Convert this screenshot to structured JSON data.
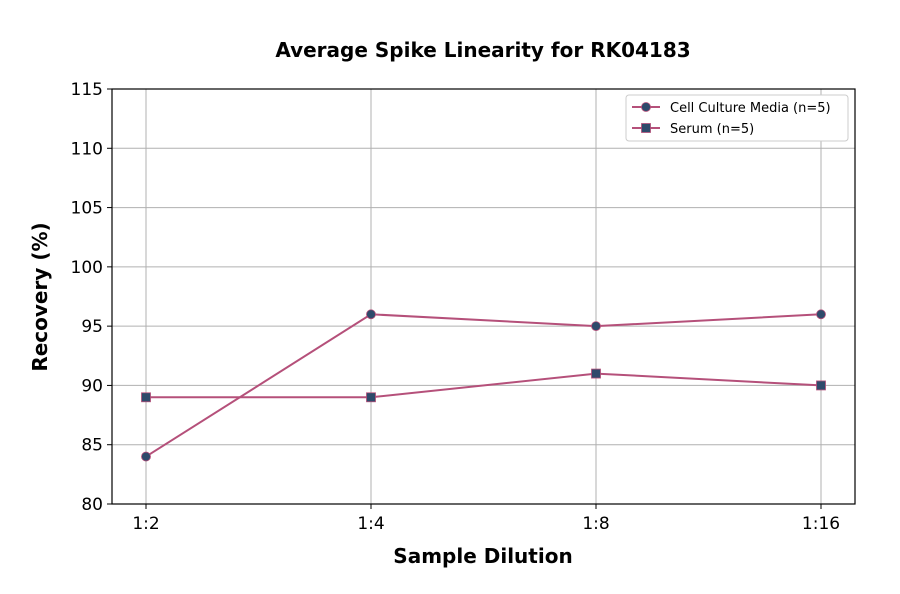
{
  "chart_data": {
    "type": "line",
    "title": "Average Spike Linearity for RK04183",
    "xlabel": "Sample Dilution",
    "ylabel": "Recovery (%)",
    "categories": [
      "1:2",
      "1:4",
      "1:8",
      "1:16"
    ],
    "ylim": [
      80,
      115
    ],
    "yticks": [
      80,
      85,
      90,
      95,
      100,
      105,
      110,
      115
    ],
    "grid": true,
    "legend_position": "top-right",
    "series": [
      {
        "name": "Cell Culture Media (n=5)",
        "values": [
          84,
          96,
          95,
          96
        ],
        "marker": "circle"
      },
      {
        "name": "Serum (n=5)",
        "values": [
          89,
          89,
          91,
          90
        ],
        "marker": "square"
      }
    ],
    "colors": {
      "line": "#b5507a",
      "marker": "#2e4a6b"
    }
  }
}
